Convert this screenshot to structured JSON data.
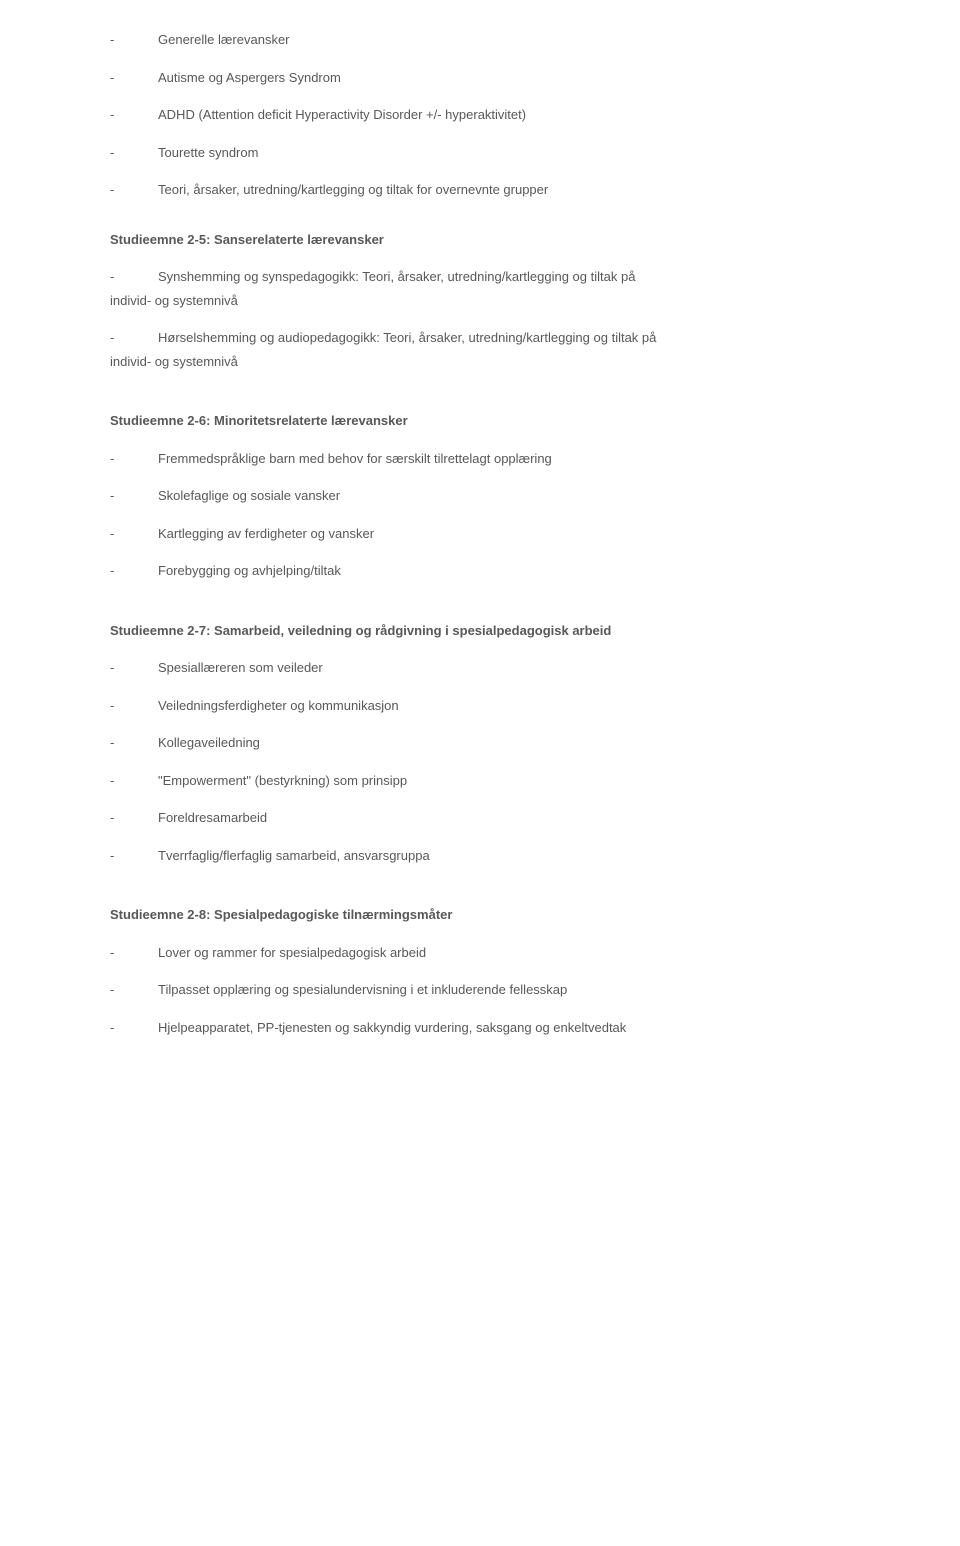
{
  "intro_items": [
    "Generelle lærevansker",
    "Autisme og Aspergers Syndrom",
    "ADHD (Attention deficit Hyperactivity Disorder +/- hyperaktivitet)",
    "Tourette syndrom",
    "Teori, årsaker, utredning/kartlegging og tiltak for overnevnte grupper"
  ],
  "section25": {
    "heading": "Studieemne 2-5: Sanserelaterte lærevansker",
    "wrap_items": [
      {
        "line1": "Synshemming og synspedagogikk: Teori, årsaker, utredning/kartlegging og tiltak på",
        "cont": "individ- og systemnivå"
      },
      {
        "line1": "Hørselshemming og audiopedagogikk: Teori, årsaker, utredning/kartlegging og tiltak på",
        "cont": "individ- og systemnivå"
      }
    ]
  },
  "section26": {
    "heading": "Studieemne 2-6: Minoritetsrelaterte lærevansker",
    "items": [
      "Fremmedspråklige barn med behov for særskilt tilrettelagt opplæring",
      "Skolefaglige og sosiale vansker",
      "Kartlegging av ferdigheter og vansker",
      "Forebygging og avhjelping/tiltak"
    ]
  },
  "section27": {
    "heading": "Studieemne 2-7: Samarbeid, veiledning og rådgivning i spesialpedagogisk arbeid",
    "items": [
      "Spesiallæreren som veileder",
      "Veiledningsferdigheter og kommunikasjon",
      "Kollegaveiledning",
      "\"Empowerment\" (bestyrkning) som prinsipp",
      "Foreldresamarbeid",
      "Tverrfaglig/flerfaglig samarbeid, ansvarsgruppa"
    ]
  },
  "section28": {
    "heading": "Studieemne 2-8: Spesialpedagogiske tilnærmingsmåter",
    "items": [
      "Lover og rammer for spesialpedagogisk arbeid",
      "Tilpasset opplæring og spesialundervisning i et inkluderende fellesskap",
      "Hjelpeapparatet, PP-tjenesten og sakkyndig vurdering, saksgang og enkeltvedtak"
    ]
  },
  "bullet": "-",
  "colors": {
    "text": "#585858",
    "background": "#ffffff"
  },
  "typography": {
    "font_family": "Verdana",
    "body_fontsize": 13,
    "heading_fontsize": 13,
    "line_height": 1.5
  }
}
